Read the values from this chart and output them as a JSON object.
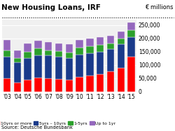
{
  "title": "New Housing Loans, IRF",
  "unit": "€ millions",
  "source": "Source: Deutsche Bundesbank",
  "years": [
    "'03",
    "'04",
    "'05",
    "'06",
    "'07",
    "'08",
    "'09",
    "'10",
    "'11",
    "'12",
    "'13",
    "'14",
    "'15"
  ],
  "series": {
    "10yrs or more": [
      50000,
      35000,
      45000,
      52000,
      50000,
      48000,
      45000,
      55000,
      60000,
      65000,
      75000,
      90000,
      130000
    ],
    "5yrs - 10yrs": [
      80000,
      75000,
      80000,
      85000,
      85000,
      82000,
      80000,
      85000,
      85000,
      85000,
      85000,
      88000,
      75000
    ],
    "1-5yrs": [
      25000,
      15000,
      25000,
      25000,
      20000,
      22000,
      22000,
      25000,
      25000,
      25000,
      22000,
      20000,
      25000
    ],
    "Up to 1yr": [
      40000,
      30000,
      30000,
      30000,
      30000,
      30000,
      30000,
      30000,
      30000,
      30000,
      28000,
      28000,
      30000
    ]
  },
  "colors": {
    "10yrs or more": "#ff0000",
    "5yrs - 10yrs": "#1a3a8a",
    "1-5yrs": "#2ca02c",
    "Up to 1yr": "#9467bd"
  },
  "ylim": [
    0,
    270000
  ],
  "yticks": [
    0,
    50000,
    100000,
    150000,
    200000,
    250000
  ],
  "ytick_labels": [
    "0",
    "50,000",
    "100,000",
    "150,000",
    "200,000",
    "250,000"
  ],
  "background_color": "#ffffff",
  "plot_bg_color": "#f0f0f0"
}
